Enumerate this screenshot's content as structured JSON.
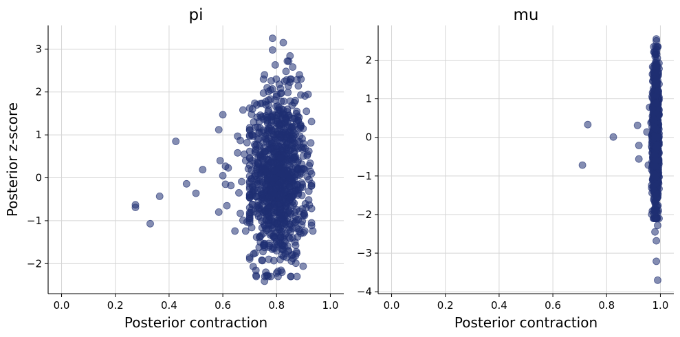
{
  "chart_data": [
    {
      "type": "scatter",
      "title": "pi",
      "xlabel": "Posterior contraction",
      "ylabel": "Posterior z-score",
      "xlim": [
        -0.05,
        1.05
      ],
      "ylim": [
        -2.7,
        3.55
      ],
      "xticks": [
        0.0,
        0.2,
        0.4,
        0.6,
        0.8,
        1.0
      ],
      "xtick_labels": [
        "0.0",
        "0.2",
        "0.4",
        "0.6",
        "0.8",
        "1.0"
      ],
      "yticks": [
        -2,
        -1,
        0,
        1,
        2,
        3
      ],
      "ytick_labels": [
        "−2",
        "−1",
        "0",
        "1",
        "2",
        "3"
      ],
      "grid": true,
      "marker_color": "#1f2f72",
      "marker_alpha": 0.55,
      "points": [
        [
          0.275,
          -0.63
        ],
        [
          0.275,
          -0.69
        ],
        [
          0.33,
          -1.07
        ],
        [
          0.365,
          -0.43
        ],
        [
          0.425,
          0.85
        ],
        [
          0.465,
          -0.14
        ],
        [
          0.5,
          -0.36
        ],
        [
          0.525,
          0.19
        ],
        [
          0.585,
          -0.8
        ],
        [
          0.585,
          1.12
        ],
        [
          0.59,
          0.4
        ],
        [
          0.6,
          1.47
        ],
        [
          0.6,
          0.05
        ],
        [
          0.61,
          0.27
        ],
        [
          0.61,
          -0.15
        ],
        [
          0.615,
          -0.65
        ],
        [
          0.62,
          0.23
        ],
        [
          0.63,
          -0.18
        ],
        [
          0.645,
          -1.24
        ],
        [
          0.655,
          0.58
        ],
        [
          0.655,
          0.97
        ],
        [
          0.66,
          -0.35
        ],
        [
          0.665,
          -0.83
        ],
        [
          0.665,
          0.87
        ],
        [
          0.67,
          -0.09
        ],
        [
          0.675,
          1.58
        ],
        [
          0.675,
          -0.99
        ],
        [
          0.68,
          0.55
        ],
        [
          0.685,
          0.4
        ],
        [
          0.685,
          -1.24
        ],
        [
          0.69,
          0.82
        ],
        [
          0.69,
          -1.03
        ],
        [
          0.695,
          0.21
        ],
        [
          0.7,
          -0.46
        ],
        [
          0.7,
          -0.9
        ],
        [
          0.71,
          1.0
        ],
        [
          0.71,
          -0.62
        ],
        [
          0.715,
          -1.77
        ],
        [
          0.715,
          1.3
        ],
        [
          0.72,
          0.62
        ],
        [
          0.73,
          1.18
        ],
        [
          0.735,
          -1.62
        ],
        [
          0.74,
          1.73
        ],
        [
          0.745,
          -1.92
        ],
        [
          0.75,
          1.43
        ],
        [
          0.755,
          -2.41
        ],
        [
          0.755,
          2.4
        ],
        [
          0.76,
          -2.2
        ],
        [
          0.765,
          2.1
        ],
        [
          0.77,
          2.01
        ],
        [
          0.78,
          2.26
        ],
        [
          0.785,
          3.25
        ],
        [
          0.785,
          2.98
        ],
        [
          0.79,
          -1.93
        ],
        [
          0.795,
          2.63
        ],
        [
          0.8,
          -2.22
        ],
        [
          0.805,
          -2.18
        ],
        [
          0.81,
          2.18
        ],
        [
          0.815,
          2.08
        ],
        [
          0.82,
          -2.2
        ],
        [
          0.825,
          3.15
        ],
        [
          0.83,
          2.25
        ],
        [
          0.835,
          2.48
        ],
        [
          0.84,
          2.72
        ],
        [
          0.845,
          2.72
        ],
        [
          0.85,
          2.84
        ],
        [
          0.855,
          -1.94
        ],
        [
          0.86,
          2.58
        ],
        [
          0.87,
          -1.82
        ],
        [
          0.875,
          -1.76
        ],
        [
          0.885,
          2.4
        ],
        [
          0.89,
          1.93
        ],
        [
          0.9,
          -1.28
        ],
        [
          0.905,
          -1.24
        ],
        [
          0.915,
          0.55
        ],
        [
          0.92,
          -0.31
        ],
        [
          0.925,
          0.34
        ],
        [
          0.93,
          -1.05
        ],
        [
          0.935,
          -1.24
        ],
        [
          0.72,
          0.1
        ],
        [
          0.73,
          -0.3
        ],
        [
          0.74,
          0.5
        ],
        [
          0.75,
          -0.8
        ],
        [
          0.76,
          0.9
        ],
        [
          0.77,
          -1.1
        ],
        [
          0.78,
          1.3
        ],
        [
          0.79,
          -1.4
        ],
        [
          0.8,
          0.2
        ],
        [
          0.81,
          -0.5
        ],
        [
          0.82,
          1.6
        ],
        [
          0.83,
          -1.6
        ],
        [
          0.84,
          0.7
        ],
        [
          0.85,
          -0.2
        ],
        [
          0.86,
          1.1
        ],
        [
          0.87,
          -0.9
        ],
        [
          0.88,
          0.4
        ],
        [
          0.89,
          -1.3
        ],
        [
          0.9,
          0.8
        ],
        [
          0.74,
          -1.5
        ],
        [
          0.76,
          1.7
        ],
        [
          0.78,
          -0.1
        ],
        [
          0.8,
          1.9
        ],
        [
          0.82,
          -1.8
        ],
        [
          0.84,
          -0.6
        ],
        [
          0.86,
          0.0
        ],
        [
          0.88,
          -0.4
        ],
        [
          0.9,
          0.2
        ],
        [
          0.73,
          0.9
        ],
        [
          0.75,
          0.3
        ],
        [
          0.77,
          -0.7
        ],
        [
          0.79,
          0.6
        ],
        [
          0.81,
          -1.2
        ],
        [
          0.83,
          0.1
        ],
        [
          0.85,
          1.4
        ],
        [
          0.87,
          0.5
        ],
        [
          0.89,
          1.2
        ],
        [
          0.91,
          -0.7
        ],
        [
          0.71,
          -0.2
        ],
        [
          0.79,
          1.0
        ],
        [
          0.83,
          -0.9
        ],
        [
          0.87,
          1.8
        ],
        [
          0.75,
          -1.3
        ],
        [
          0.8,
          -0.8
        ],
        [
          0.85,
          0.9
        ],
        [
          0.77,
          0.2
        ],
        [
          0.81,
          0.7
        ],
        [
          0.86,
          -1.4
        ],
        [
          0.8,
          -1.7
        ],
        [
          0.82,
          1.2
        ]
      ],
      "cluster": {
        "n": 900,
        "x_mean": 0.805,
        "x_sd": 0.052,
        "y_mean": 0.0,
        "y_sd": 0.98
      }
    },
    {
      "type": "scatter",
      "title": "mu",
      "xlabel": "Posterior contraction",
      "ylabel": "",
      "xlim": [
        -0.05,
        1.05
      ],
      "ylim": [
        -4.05,
        2.9
      ],
      "xticks": [
        0.0,
        0.2,
        0.4,
        0.6,
        0.8,
        1.0
      ],
      "xtick_labels": [
        "0.0",
        "0.2",
        "0.4",
        "0.6",
        "0.8",
        "1.0"
      ],
      "yticks": [
        -4,
        -3,
        -2,
        -1,
        0,
        1,
        2
      ],
      "ytick_labels": [
        "−4",
        "−3",
        "−2",
        "−1",
        "0",
        "1",
        "2"
      ],
      "grid": true,
      "marker_color": "#1f2f72",
      "marker_alpha": 0.55,
      "points": [
        [
          0.71,
          -0.72
        ],
        [
          0.73,
          0.33
        ],
        [
          0.825,
          0.01
        ],
        [
          0.915,
          0.31
        ],
        [
          0.92,
          -0.21
        ],
        [
          0.92,
          -0.56
        ],
        [
          0.95,
          0.14
        ],
        [
          0.955,
          -0.72
        ],
        [
          0.96,
          0.78
        ],
        [
          0.965,
          0.38
        ],
        [
          0.985,
          2.55
        ],
        [
          0.985,
          2.5
        ],
        [
          0.985,
          -3.21
        ],
        [
          0.99,
          -3.7
        ],
        [
          0.985,
          -2.68
        ],
        [
          0.98,
          -2.45
        ],
        [
          0.99,
          -2.28
        ],
        [
          0.985,
          2.2
        ],
        [
          0.99,
          2.35
        ],
        [
          0.985,
          -2.05
        ],
        [
          0.98,
          1.9
        ],
        [
          0.99,
          -1.95
        ],
        [
          0.975,
          1.7
        ],
        [
          0.98,
          -1.7
        ]
      ],
      "cluster": {
        "n": 950,
        "x_mean": 0.983,
        "x_sd": 0.006,
        "y_mean": 0.0,
        "y_sd": 0.92
      }
    }
  ]
}
